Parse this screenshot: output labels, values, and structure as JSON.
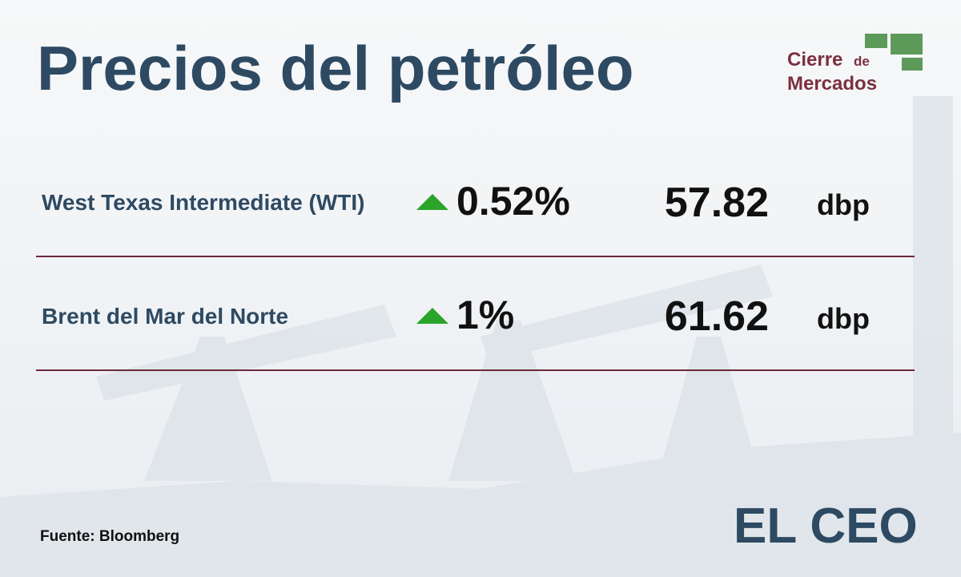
{
  "header": {
    "title": "Precios del petróleo"
  },
  "badge": {
    "line1": "Cierre",
    "small": "de",
    "line2": "Mercados"
  },
  "rows": [
    {
      "name": "West Texas Intermediate (WTI)",
      "change": "0.52%",
      "price": "57.82",
      "unit": "dbp"
    },
    {
      "name": "Brent del Mar del Norte",
      "change": "1%",
      "price": "61.62",
      "unit": "dbp"
    }
  ],
  "footer": {
    "source": "Fuente: Bloomberg",
    "brand": "EL CEO"
  }
}
